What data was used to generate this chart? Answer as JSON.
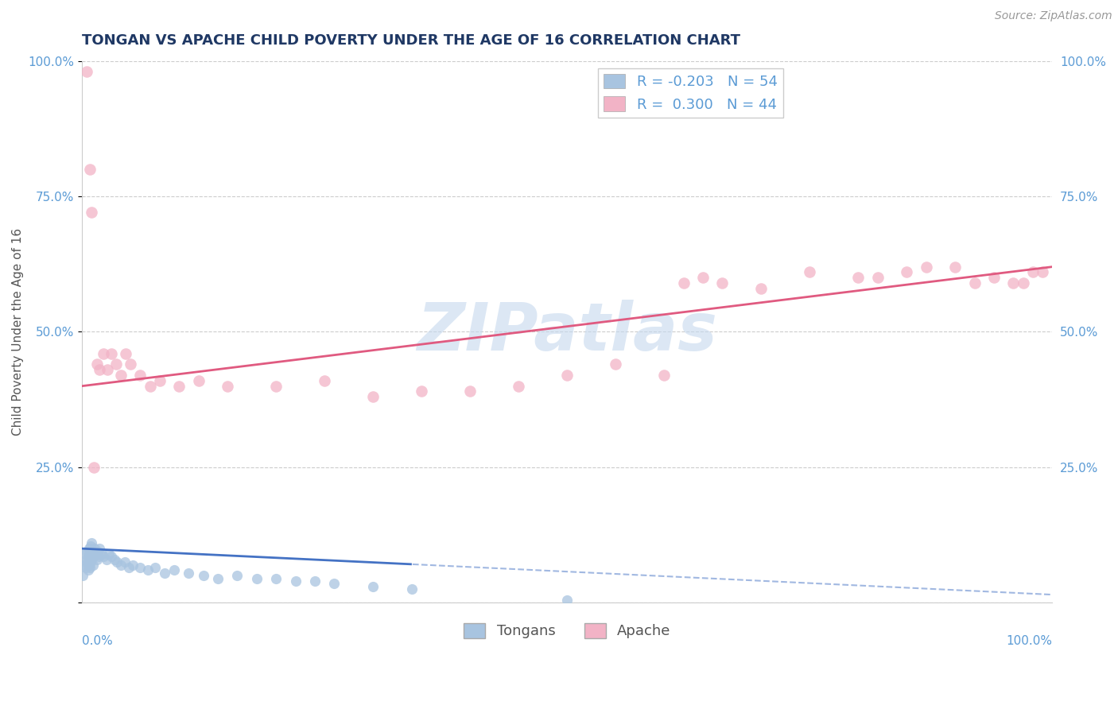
{
  "title": "TONGAN VS APACHE CHILD POVERTY UNDER THE AGE OF 16 CORRELATION CHART",
  "source": "Source: ZipAtlas.com",
  "ylabel": "Child Poverty Under the Age of 16",
  "legend_tongan_R": "-0.203",
  "legend_tongan_N": "54",
  "legend_apache_R": "0.300",
  "legend_apache_N": "44",
  "tongan_color": "#a8c4e0",
  "apache_color": "#f2b3c6",
  "tongan_line_color": "#4472c4",
  "apache_line_color": "#e05a80",
  "watermark_color": "#c5d8ee",
  "xlim": [
    0.0,
    1.0
  ],
  "ylim": [
    0.0,
    1.0
  ],
  "yticks": [
    0.0,
    0.25,
    0.5,
    0.75,
    1.0
  ],
  "ytick_labels": [
    "",
    "25.0%",
    "50.0%",
    "75.0%",
    "100.0%"
  ],
  "tongan_x": [
    0.001,
    0.002,
    0.003,
    0.004,
    0.004,
    0.005,
    0.005,
    0.006,
    0.006,
    0.007,
    0.007,
    0.008,
    0.008,
    0.009,
    0.009,
    0.01,
    0.01,
    0.011,
    0.011,
    0.012,
    0.013,
    0.014,
    0.015,
    0.016,
    0.017,
    0.018,
    0.02,
    0.022,
    0.025,
    0.028,
    0.03,
    0.033,
    0.036,
    0.04,
    0.044,
    0.048,
    0.052,
    0.06,
    0.068,
    0.075,
    0.085,
    0.095,
    0.11,
    0.125,
    0.14,
    0.16,
    0.18,
    0.2,
    0.22,
    0.24,
    0.26,
    0.3,
    0.34,
    0.5
  ],
  "tongan_y": [
    0.05,
    0.07,
    0.09,
    0.065,
    0.08,
    0.075,
    0.095,
    0.06,
    0.085,
    0.07,
    0.1,
    0.065,
    0.09,
    0.075,
    0.105,
    0.08,
    0.11,
    0.07,
    0.095,
    0.085,
    0.1,
    0.09,
    0.08,
    0.095,
    0.085,
    0.1,
    0.09,
    0.085,
    0.08,
    0.09,
    0.085,
    0.08,
    0.075,
    0.07,
    0.075,
    0.065,
    0.07,
    0.065,
    0.06,
    0.065,
    0.055,
    0.06,
    0.055,
    0.05,
    0.045,
    0.05,
    0.045,
    0.045,
    0.04,
    0.04,
    0.035,
    0.03,
    0.025,
    0.005
  ],
  "apache_x": [
    0.005,
    0.008,
    0.01,
    0.012,
    0.015,
    0.018,
    0.022,
    0.026,
    0.03,
    0.035,
    0.04,
    0.045,
    0.05,
    0.06,
    0.07,
    0.08,
    0.1,
    0.12,
    0.15,
    0.2,
    0.25,
    0.3,
    0.35,
    0.4,
    0.45,
    0.5,
    0.55,
    0.6,
    0.62,
    0.64,
    0.66,
    0.7,
    0.75,
    0.8,
    0.82,
    0.85,
    0.87,
    0.9,
    0.92,
    0.94,
    0.96,
    0.97,
    0.98,
    0.99
  ],
  "apache_y": [
    0.98,
    0.8,
    0.72,
    0.25,
    0.44,
    0.43,
    0.46,
    0.43,
    0.46,
    0.44,
    0.42,
    0.46,
    0.44,
    0.42,
    0.4,
    0.41,
    0.4,
    0.41,
    0.4,
    0.4,
    0.41,
    0.38,
    0.39,
    0.39,
    0.4,
    0.42,
    0.44,
    0.42,
    0.59,
    0.6,
    0.59,
    0.58,
    0.61,
    0.6,
    0.6,
    0.61,
    0.62,
    0.62,
    0.59,
    0.6,
    0.59,
    0.59,
    0.61,
    0.61
  ],
  "grid_color": "#cccccc",
  "background_color": "#ffffff",
  "title_fontsize": 13,
  "axis_label_fontsize": 11,
  "tick_fontsize": 11,
  "legend_fontsize": 13,
  "source_fontsize": 10,
  "marker_size_tongan": 90,
  "marker_size_apache": 110
}
